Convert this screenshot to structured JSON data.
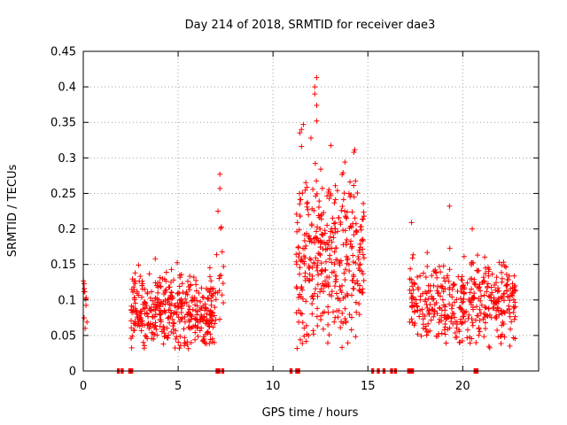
{
  "chart_data": {
    "type": "scatter",
    "title": "Day 214 of 2018, SRMTID for receiver dae3",
    "xlabel": "GPS time / hours",
    "ylabel": "SRMTID / TECUs",
    "xlim": [
      0,
      24
    ],
    "ylim": [
      0,
      0.45
    ],
    "x_ticks": [
      0,
      5,
      10,
      15,
      20
    ],
    "x_tick_labels": [
      "0",
      "5",
      "10",
      "15",
      "20"
    ],
    "y_ticks": [
      0,
      0.05,
      0.1,
      0.15,
      0.2,
      0.25,
      0.3,
      0.35,
      0.4,
      0.45
    ],
    "y_tick_labels": [
      "0",
      "0.05",
      "0.1",
      "0.15",
      "0.2",
      "0.25",
      "0.3",
      "0.35",
      "0.4",
      "0.45"
    ],
    "grid": true,
    "marker": "plus",
    "color": "#ff0000",
    "clusters": [
      {
        "x_range": [
          0.0,
          0.2
        ],
        "y_center": 0.1,
        "y_spread": 0.02,
        "count": 10
      },
      {
        "x_range": [
          2.5,
          7.0
        ],
        "y_center": 0.085,
        "y_spread": 0.025,
        "count": 420
      },
      {
        "x_range": [
          7.0,
          7.4
        ],
        "y_center": 0.13,
        "y_spread": 0.04,
        "count": 14
      },
      {
        "x_range": [
          11.2,
          14.8
        ],
        "y_center": 0.16,
        "y_spread": 0.06,
        "count": 380
      },
      {
        "x_range": [
          17.2,
          22.8
        ],
        "y_center": 0.1,
        "y_spread": 0.03,
        "count": 430
      }
    ],
    "notable_points": [
      {
        "x": 12.3,
        "y": 0.413
      },
      {
        "x": 12.2,
        "y": 0.4
      },
      {
        "x": 12.2,
        "y": 0.39
      },
      {
        "x": 12.3,
        "y": 0.374
      },
      {
        "x": 12.3,
        "y": 0.352
      },
      {
        "x": 11.6,
        "y": 0.347
      },
      {
        "x": 11.5,
        "y": 0.34
      },
      {
        "x": 12.0,
        "y": 0.328
      },
      {
        "x": 11.5,
        "y": 0.316
      },
      {
        "x": 7.2,
        "y": 0.277
      },
      {
        "x": 7.2,
        "y": 0.257
      },
      {
        "x": 7.1,
        "y": 0.225
      },
      {
        "x": 19.3,
        "y": 0.232
      },
      {
        "x": 17.3,
        "y": 0.209
      },
      {
        "x": 14.8,
        "y": 0.218
      },
      {
        "x": 20.5,
        "y": 0.2
      },
      {
        "x": 0.1,
        "y": 0.06
      }
    ],
    "zero_value_ranges": [
      [
        1.8,
        1.9
      ],
      [
        2.0,
        2.1
      ],
      [
        2.4,
        2.6
      ],
      [
        7.0,
        7.2
      ],
      [
        7.3,
        7.4
      ],
      [
        10.9,
        11.0
      ],
      [
        11.2,
        11.4
      ],
      [
        15.2,
        15.3
      ],
      [
        15.5,
        15.6
      ],
      [
        15.8,
        15.9
      ],
      [
        16.2,
        16.3
      ],
      [
        16.4,
        16.5
      ],
      [
        17.1,
        17.4
      ],
      [
        20.6,
        20.8
      ]
    ]
  }
}
